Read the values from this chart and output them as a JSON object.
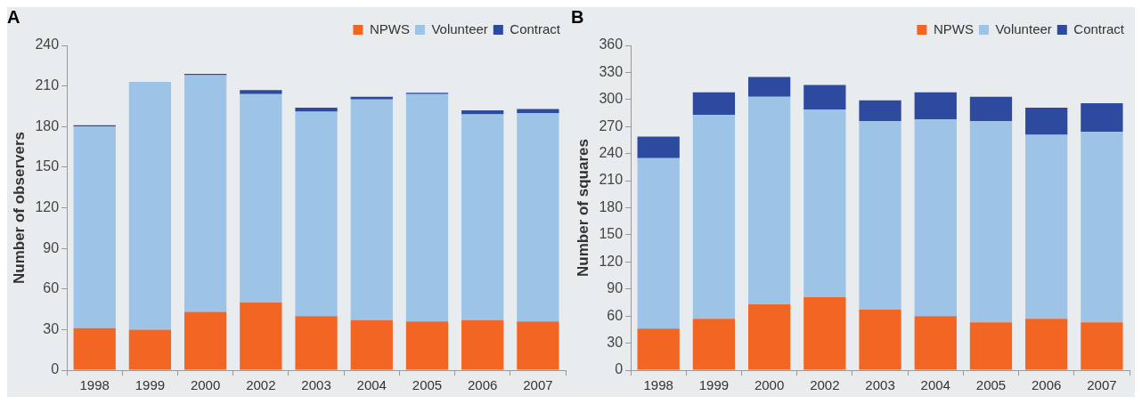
{
  "chart_data": [
    {
      "type": "bar",
      "title": "A",
      "ylabel": "Number of observers",
      "categories": [
        "1998",
        "1999",
        "2000",
        "2002",
        "2003",
        "2004",
        "2005",
        "2006",
        "2007"
      ],
      "stacked": true,
      "legend": "top right",
      "grid": false,
      "ylim": [
        0,
        240
      ],
      "yticks": [
        0,
        30,
        60,
        90,
        120,
        150,
        180,
        210,
        240
      ],
      "series": [
        {
          "name": "NPWS",
          "color": "#f26522",
          "values": [
            31,
            30,
            43,
            50,
            40,
            37,
            36,
            37,
            36
          ]
        },
        {
          "name": "Volunteer",
          "color": "#9dc3e6",
          "values": [
            149,
            183,
            175,
            154,
            151,
            163,
            168,
            152,
            154
          ]
        },
        {
          "name": "Contract",
          "color": "#2e4a9e",
          "values": [
            1,
            0,
            1,
            3,
            3,
            2,
            1,
            3,
            3
          ]
        }
      ]
    },
    {
      "type": "bar",
      "title": "B",
      "ylabel": "Number of squares",
      "categories": [
        "1998",
        "1999",
        "2000",
        "2002",
        "2003",
        "2004",
        "2005",
        "2006",
        "2007"
      ],
      "stacked": true,
      "legend": "top right",
      "grid": false,
      "ylim": [
        0,
        360
      ],
      "yticks": [
        0,
        30,
        60,
        90,
        120,
        150,
        180,
        210,
        240,
        270,
        300,
        330,
        360
      ],
      "series": [
        {
          "name": "NPWS",
          "color": "#f26522",
          "values": [
            46,
            57,
            73,
            81,
            67,
            60,
            53,
            57,
            53
          ]
        },
        {
          "name": "Volunteer",
          "color": "#9dc3e6",
          "values": [
            189,
            226,
            230,
            208,
            209,
            218,
            223,
            204,
            211
          ]
        },
        {
          "name": "Contract",
          "color": "#2e4a9e",
          "values": [
            24,
            25,
            22,
            27,
            23,
            30,
            27,
            30,
            32
          ]
        }
      ]
    }
  ]
}
